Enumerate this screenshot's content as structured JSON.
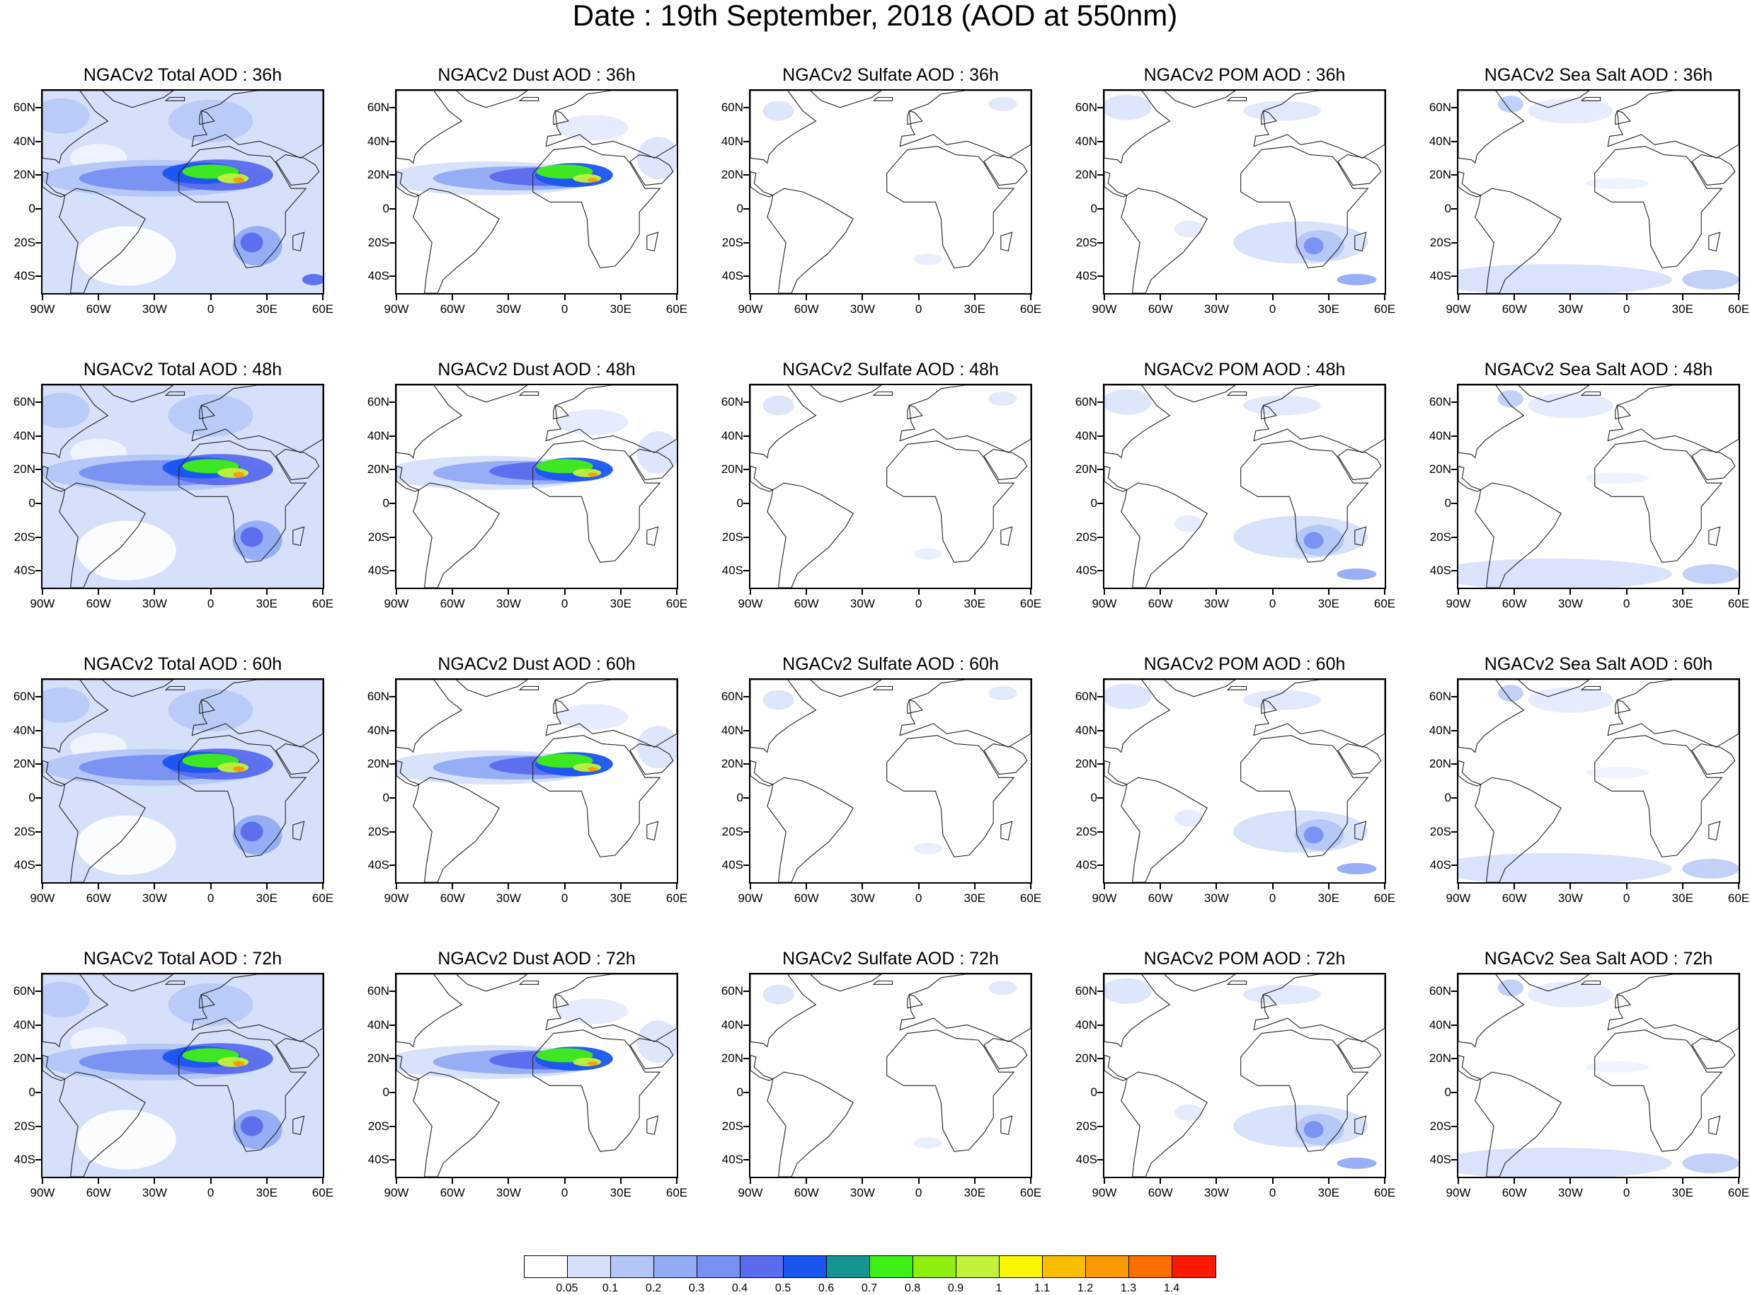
{
  "title": "Date : 19th September, 2018 (AOD at 550nm)",
  "axes": {
    "lat_ticks": [
      "60N",
      "40N",
      "20N",
      "0",
      "20S",
      "40S"
    ],
    "lon_ticks": [
      "90W",
      "60W",
      "30W",
      "0",
      "30E",
      "60E"
    ],
    "lon_range": [
      -90,
      60
    ],
    "lat_range": [
      -50,
      70
    ]
  },
  "panels": [
    {
      "title": "NGACv2 Total AOD : 36h",
      "species": "total"
    },
    {
      "title": "NGACv2 Dust AOD : 36h",
      "species": "dust"
    },
    {
      "title": "NGACv2 Sulfate AOD : 36h",
      "species": "sulfate"
    },
    {
      "title": "NGACv2 POM AOD : 36h",
      "species": "pom"
    },
    {
      "title": "NGACv2 Sea Salt AOD : 36h",
      "species": "seasalt"
    },
    {
      "title": "NGACv2 Total AOD : 48h",
      "species": "total"
    },
    {
      "title": "NGACv2 Dust AOD : 48h",
      "species": "dust"
    },
    {
      "title": "NGACv2 Sulfate AOD : 48h",
      "species": "sulfate"
    },
    {
      "title": "NGACv2 POM AOD : 48h",
      "species": "pom"
    },
    {
      "title": "NGACv2 Sea Salt AOD : 48h",
      "species": "seasalt"
    },
    {
      "title": "NGACv2 Total AOD : 60h",
      "species": "total"
    },
    {
      "title": "NGACv2 Dust AOD : 60h",
      "species": "dust"
    },
    {
      "title": "NGACv2 Sulfate AOD : 60h",
      "species": "sulfate"
    },
    {
      "title": "NGACv2 POM AOD : 60h",
      "species": "pom"
    },
    {
      "title": "NGACv2 Sea Salt AOD : 60h",
      "species": "seasalt"
    },
    {
      "title": "NGACv2 Total AOD : 72h",
      "species": "total"
    },
    {
      "title": "NGACv2 Dust AOD : 72h",
      "species": "dust"
    },
    {
      "title": "NGACv2 Sulfate AOD : 72h",
      "species": "sulfate"
    },
    {
      "title": "NGACv2 POM AOD : 72h",
      "species": "pom"
    },
    {
      "title": "NGACv2 Sea Salt  AOD : 72h",
      "species": "seasalt"
    }
  ],
  "colorbar": {
    "labels": [
      "0.05",
      "0.1",
      "0.2",
      "0.3",
      "0.4",
      "0.5",
      "0.6",
      "0.7",
      "0.8",
      "0.9",
      "1",
      "1.1",
      "1.2",
      "1.3",
      "1.4"
    ],
    "colors": [
      "#ffffff",
      "#d6e0fb",
      "#b4c6f8",
      "#92abf5",
      "#7890f2",
      "#5a6bee",
      "#1a55f0",
      "#139591",
      "#3ff017",
      "#8ff00f",
      "#c3f23a",
      "#fbf700",
      "#fbbd00",
      "#fb9a00",
      "#fb6f00",
      "#fb1a00"
    ]
  }
}
